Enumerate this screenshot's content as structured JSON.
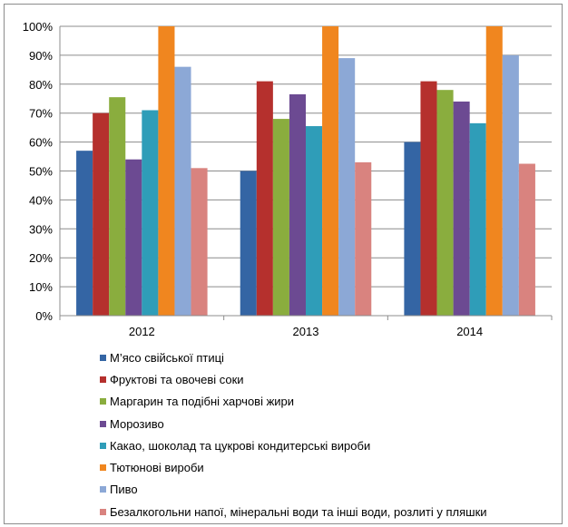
{
  "chart_data": {
    "type": "bar",
    "categories": [
      "2012",
      "2013",
      "2014"
    ],
    "ylim": [
      0,
      100
    ],
    "yticks": [
      "0%",
      "10%",
      "20%",
      "30%",
      "40%",
      "50%",
      "60%",
      "70%",
      "80%",
      "90%",
      "100%"
    ],
    "grid": true,
    "legend_position": "bottom",
    "series": [
      {
        "name": "М’ясо свійської птиці",
        "color": "#3465a4",
        "values": [
          57,
          50,
          60
        ]
      },
      {
        "name": "Фруктові та овочеві соки",
        "color": "#b5302d",
        "values": [
          70,
          81,
          81
        ]
      },
      {
        "name": "Маргарин та подібні харчові жири",
        "color": "#8aad3e",
        "values": [
          75.5,
          68,
          78
        ]
      },
      {
        "name": "Морозиво",
        "color": "#6c4a92",
        "values": [
          54,
          76.5,
          74
        ]
      },
      {
        "name": "Какао, шоколад та цукрові кондитерські вироби",
        "color": "#2f9db8",
        "values": [
          71,
          65.5,
          66.5
        ]
      },
      {
        "name": "Тютюнові вироби",
        "color": "#f0861f",
        "values": [
          100,
          100,
          100
        ]
      },
      {
        "name": "Пиво",
        "color": "#8ca8d6",
        "values": [
          86,
          89,
          90
        ]
      },
      {
        "name": "Безалкогольни напої, мінеральні води та інші води, розлиті у пляшки",
        "color": "#d9837f",
        "values": [
          51,
          53,
          52.5
        ]
      }
    ]
  }
}
